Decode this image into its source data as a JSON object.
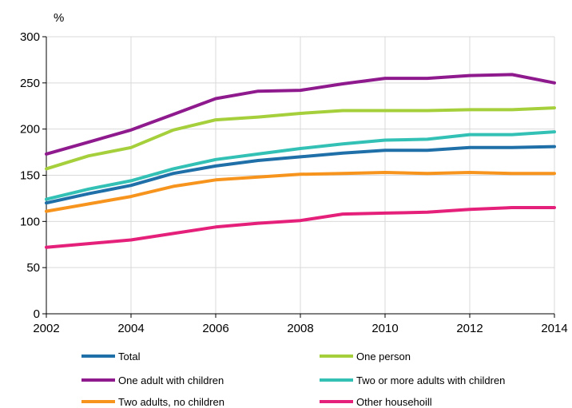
{
  "chart_data": {
    "type": "line",
    "unit_label": "%",
    "x": [
      2002,
      2003,
      2004,
      2005,
      2006,
      2007,
      2008,
      2009,
      2010,
      2011,
      2012,
      2013,
      2014
    ],
    "x_ticks": [
      "2002",
      "2004",
      "2006",
      "2008",
      "2010",
      "2012",
      "2014"
    ],
    "ylim": [
      0,
      300
    ],
    "y_ticks": [
      0,
      50,
      100,
      150,
      200,
      250,
      300
    ],
    "grid": {
      "horizontal": true,
      "vertical": true
    },
    "legend_placement": "bottom",
    "series": [
      {
        "name": "Total",
        "color": "#1f6fa8",
        "values": [
          120,
          130,
          139,
          152,
          160,
          166,
          170,
          174,
          177,
          177,
          180,
          180,
          181
        ]
      },
      {
        "name": "One person",
        "color": "#a6cf3c",
        "values": [
          157,
          171,
          180,
          199,
          210,
          213,
          217,
          220,
          220,
          220,
          221,
          221,
          223
        ]
      },
      {
        "name": "One adult with children",
        "color": "#8e1a8e",
        "values": [
          173,
          186,
          199,
          216,
          233,
          241,
          242,
          249,
          255,
          255,
          258,
          259,
          250
        ]
      },
      {
        "name": "Two or more adults with children",
        "color": "#33c0b5",
        "values": [
          124,
          135,
          144,
          157,
          167,
          173,
          179,
          184,
          188,
          189,
          194,
          194,
          197
        ]
      },
      {
        "name": "Two adults, no children",
        "color": "#f7941d",
        "values": [
          111,
          119,
          127,
          138,
          145,
          148,
          151,
          152,
          153,
          152,
          153,
          152,
          152
        ]
      },
      {
        "name": "Other househoill",
        "color": "#e5207a",
        "values": [
          72,
          76,
          80,
          87,
          94,
          98,
          101,
          108,
          109,
          110,
          113,
          115,
          115
        ]
      }
    ]
  }
}
